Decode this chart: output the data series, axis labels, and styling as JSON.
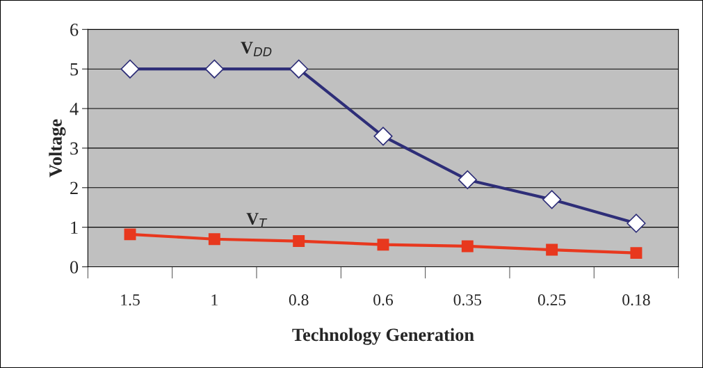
{
  "chart_data": {
    "type": "line",
    "xlabel": "Technology Generation",
    "ylabel": "Voltage",
    "categories": [
      "1.5",
      "1",
      "0.8",
      "0.6",
      "0.35",
      "0.25",
      "0.18"
    ],
    "series": [
      {
        "name": "V$_{DD}$",
        "color": "#2e2e78",
        "marker": "diamond",
        "values": [
          5,
          5,
          5,
          3.3,
          2.2,
          1.7,
          1.1
        ]
      },
      {
        "name": "V$_{T}$",
        "color": "#e8381e",
        "marker": "square",
        "values": [
          0.82,
          0.7,
          0.65,
          0.56,
          0.52,
          0.43,
          0.35
        ]
      }
    ],
    "ylim": [
      0,
      6
    ],
    "yticks": [
      0,
      1,
      2,
      3,
      4,
      5,
      6
    ],
    "grid": "y",
    "legend": false
  }
}
